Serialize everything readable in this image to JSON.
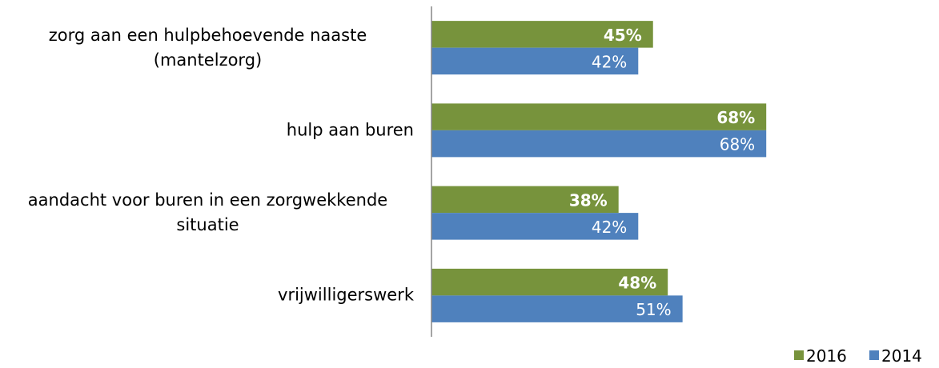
{
  "chart_data": {
    "type": "hbar",
    "categories": [
      "zorg aan een hulpbehoevende naaste (mantelzorg)",
      "hulp aan buren",
      "aandacht voor buren in een zorgwekkende situatie",
      "vrijwilligerswerk"
    ],
    "series": [
      {
        "name": "2016",
        "color": "#77933c",
        "values": [
          45,
          68,
          38,
          48
        ],
        "value_labels": [
          "45%",
          "68%",
          "38%",
          "48%"
        ],
        "bold": true
      },
      {
        "name": "2014",
        "color": "#4f81bd",
        "values": [
          42,
          68,
          42,
          51
        ],
        "value_labels": [
          "42%",
          "68%",
          "42%",
          "51%"
        ],
        "bold": false
      }
    ],
    "xlim": [
      0,
      100
    ],
    "legend": "bottom-right"
  }
}
